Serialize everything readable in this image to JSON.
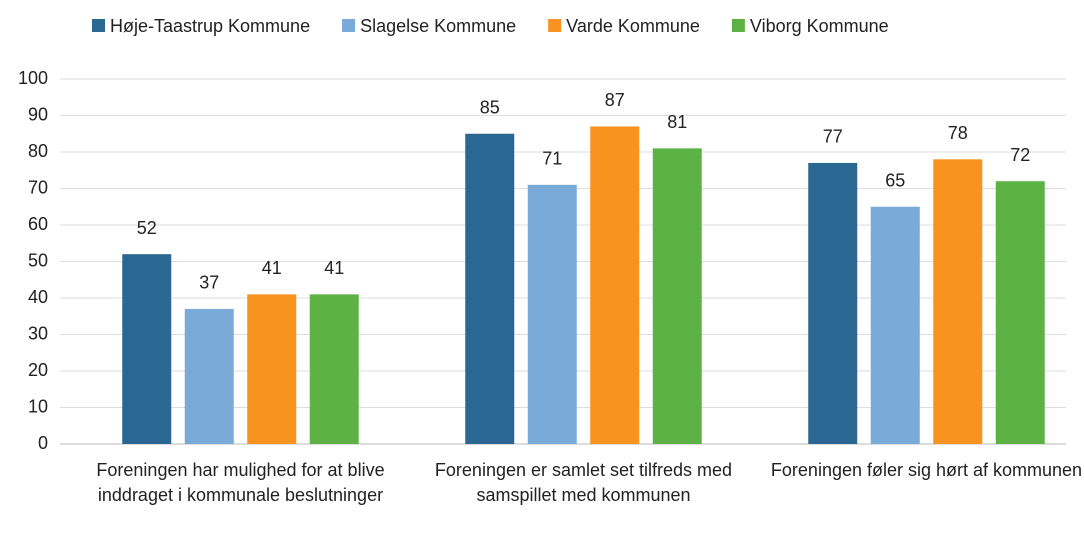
{
  "chart_data": {
    "type": "bar",
    "categories": [
      "Foreningen har mulighed for at blive inddraget i kommunale beslutninger",
      "Foreningen er samlet set tilfreds med samspillet med kommunen",
      "Foreningen føler sig hørt af kommunen"
    ],
    "series": [
      {
        "name": "Høje-Taastrup Kommune",
        "color": "#2a6792",
        "values": [
          52,
          85,
          77
        ]
      },
      {
        "name": "Slagelse Kommune",
        "color": "#7aaad7",
        "values": [
          37,
          71,
          65
        ]
      },
      {
        "name": "Varde Kommune",
        "color": "#f7931e",
        "values": [
          41,
          87,
          78
        ]
      },
      {
        "name": "Viborg Kommune",
        "color": "#5db245",
        "values": [
          41,
          81,
          72
        ]
      }
    ],
    "ylim": [
      0,
      100
    ],
    "yticks": [
      0,
      10,
      20,
      30,
      40,
      50,
      60,
      70,
      80,
      90,
      100
    ],
    "grid": true,
    "legend": "top"
  }
}
